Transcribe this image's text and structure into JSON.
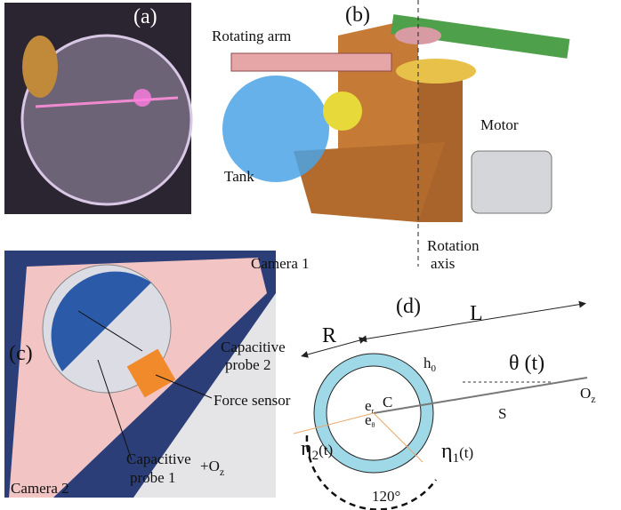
{
  "panel_a": {
    "label": "(a)"
  },
  "panel_b": {
    "label": "(b)",
    "rotating_arm": "Rotating arm",
    "tank": "Tank",
    "motor": "Motor",
    "rotation_axis": [
      "Rotation",
      "axis"
    ]
  },
  "panel_c": {
    "label": "(c)",
    "camera_1": "Camera 1",
    "camera_2": "Camera 2",
    "probe_2": [
      "Capacitive",
      "probe 2"
    ],
    "force_sensor": "Force sensor",
    "probe_1": [
      "Capacitive",
      "probe 1"
    ],
    "axis": {
      "prefix": "+",
      "main": "O",
      "sub": "z"
    }
  },
  "panel_d": {
    "label": "(d)",
    "R": "R",
    "L": "L",
    "h0": {
      "main": "h",
      "sub": "0"
    },
    "C": "C",
    "er": {
      "main": "e",
      "sub": "r"
    },
    "etheta": {
      "main": "e",
      "sub": "θ"
    },
    "theta": "θ (t)",
    "S": "S",
    "Oz": {
      "main": "O",
      "sub": "z"
    },
    "eta2": {
      "main": "η",
      "sub": "2",
      "rest": "(t)"
    },
    "eta1": {
      "main": "η",
      "sub": "1",
      "rest": "(t)"
    },
    "angle": "120°"
  }
}
